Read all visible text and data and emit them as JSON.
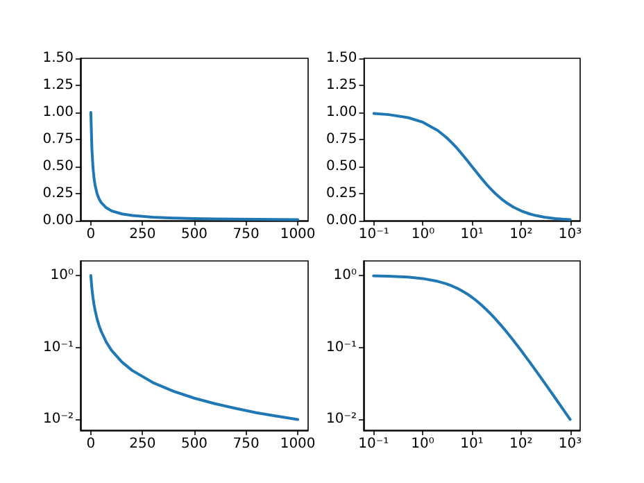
{
  "chart_data": [
    {
      "type": "line",
      "x": [
        0,
        5,
        10,
        15,
        20,
        30,
        40,
        50,
        75,
        100,
        150,
        200,
        300,
        400,
        500,
        600,
        700,
        800,
        900,
        1000
      ],
      "series": [
        {
          "color": "#1f77b4",
          "values": [
            1,
            0.667,
            0.5,
            0.4,
            0.333,
            0.25,
            0.2,
            0.167,
            0.118,
            0.0909,
            0.0625,
            0.0476,
            0.0323,
            0.0244,
            0.0196,
            0.0164,
            0.0141,
            0.0123,
            0.011,
            0.0099
          ]
        }
      ],
      "xlim": [
        -50,
        1050
      ],
      "xticks": [
        0,
        250,
        500,
        750,
        1000
      ],
      "ylim": [
        0,
        1.5
      ],
      "yticks": [
        {
          "value": 0,
          "label": "0.00"
        },
        {
          "value": 0.25,
          "label": "0.25"
        },
        {
          "value": 0.5,
          "label": "0.50"
        },
        {
          "value": 0.75,
          "label": "0.75"
        },
        {
          "value": 1,
          "label": "1.00"
        },
        {
          "value": 1.25,
          "label": "1.25"
        },
        {
          "value": 1.5,
          "label": "1.50"
        }
      ],
      "marker": "none",
      "line_style": "solid"
    },
    {
      "type": "line",
      "x": [
        0.1,
        0.2,
        0.5,
        1,
        2,
        3,
        4,
        5,
        6,
        7,
        8,
        10,
        12,
        15,
        20,
        25,
        30,
        40,
        50,
        70,
        100,
        150,
        200,
        300,
        500,
        700,
        1000
      ],
      "series": [
        {
          "color": "#1f77b4",
          "values": [
            0.99,
            0.98,
            0.952,
            0.909,
            0.833,
            0.769,
            0.714,
            0.667,
            0.625,
            0.588,
            0.556,
            0.5,
            0.455,
            0.4,
            0.333,
            0.286,
            0.25,
            0.2,
            0.167,
            0.125,
            0.0909,
            0.0625,
            0.0476,
            0.0323,
            0.0196,
            0.0141,
            0.0099
          ]
        }
      ],
      "log": "x",
      "xlim": [
        0.063,
        1600
      ],
      "xticks": [
        {
          "value": 0.1,
          "label": "10⁻¹"
        },
        {
          "value": 1,
          "label": "10⁰"
        },
        {
          "value": 10,
          "label": "10¹"
        },
        {
          "value": 100,
          "label": "10²"
        },
        {
          "value": 1000,
          "label": "10³"
        }
      ],
      "ylim": [
        0,
        1.5
      ],
      "yticks": [
        {
          "value": 0,
          "label": "0.00"
        },
        {
          "value": 0.25,
          "label": "0.25"
        },
        {
          "value": 0.5,
          "label": "0.50"
        },
        {
          "value": 0.75,
          "label": "0.75"
        },
        {
          "value": 1,
          "label": "1.00"
        },
        {
          "value": 1.25,
          "label": "1.25"
        },
        {
          "value": 1.5,
          "label": "1.50"
        }
      ],
      "marker": "none",
      "line_style": "solid"
    },
    {
      "type": "line",
      "x": [
        0,
        5,
        10,
        15,
        20,
        30,
        40,
        50,
        75,
        100,
        150,
        200,
        300,
        400,
        500,
        600,
        700,
        800,
        900,
        1000
      ],
      "series": [
        {
          "color": "#1f77b4",
          "values": [
            1,
            0.667,
            0.5,
            0.4,
            0.333,
            0.25,
            0.2,
            0.167,
            0.118,
            0.0909,
            0.0625,
            0.0476,
            0.0323,
            0.0244,
            0.0196,
            0.0164,
            0.0141,
            0.0123,
            0.011,
            0.0099
          ]
        }
      ],
      "log": "y",
      "xlim": [
        -50,
        1050
      ],
      "xticks": [
        0,
        250,
        500,
        750,
        1000
      ],
      "ylim": [
        0.007,
        1.6
      ],
      "yticks": [
        {
          "value": 0.01,
          "label": "10⁻²"
        },
        {
          "value": 0.1,
          "label": "10⁻¹"
        },
        {
          "value": 1,
          "label": "10⁰"
        }
      ],
      "marker": "none",
      "line_style": "solid"
    },
    {
      "type": "line",
      "x": [
        0.1,
        0.2,
        0.5,
        1,
        2,
        3,
        4,
        5,
        6,
        7,
        8,
        10,
        12,
        15,
        20,
        25,
        30,
        40,
        50,
        70,
        100,
        150,
        200,
        300,
        500,
        700,
        1000
      ],
      "series": [
        {
          "color": "#1f77b4",
          "values": [
            0.99,
            0.98,
            0.952,
            0.909,
            0.833,
            0.769,
            0.714,
            0.667,
            0.625,
            0.588,
            0.556,
            0.5,
            0.455,
            0.4,
            0.333,
            0.286,
            0.25,
            0.2,
            0.167,
            0.125,
            0.0909,
            0.0625,
            0.0476,
            0.0323,
            0.0196,
            0.0141,
            0.0099
          ]
        }
      ],
      "log": "xy",
      "xlim": [
        0.063,
        1600
      ],
      "xticks": [
        {
          "value": 0.1,
          "label": "10⁻¹"
        },
        {
          "value": 1,
          "label": "10⁰"
        },
        {
          "value": 10,
          "label": "10¹"
        },
        {
          "value": 100,
          "label": "10²"
        },
        {
          "value": 1000,
          "label": "10³"
        }
      ],
      "ylim": [
        0.007,
        1.6
      ],
      "yticks": [
        {
          "value": 0.01,
          "label": "10⁻²"
        },
        {
          "value": 0.1,
          "label": "10⁻¹"
        },
        {
          "value": 1,
          "label": "10⁰"
        }
      ],
      "marker": "none",
      "line_style": "solid"
    }
  ]
}
